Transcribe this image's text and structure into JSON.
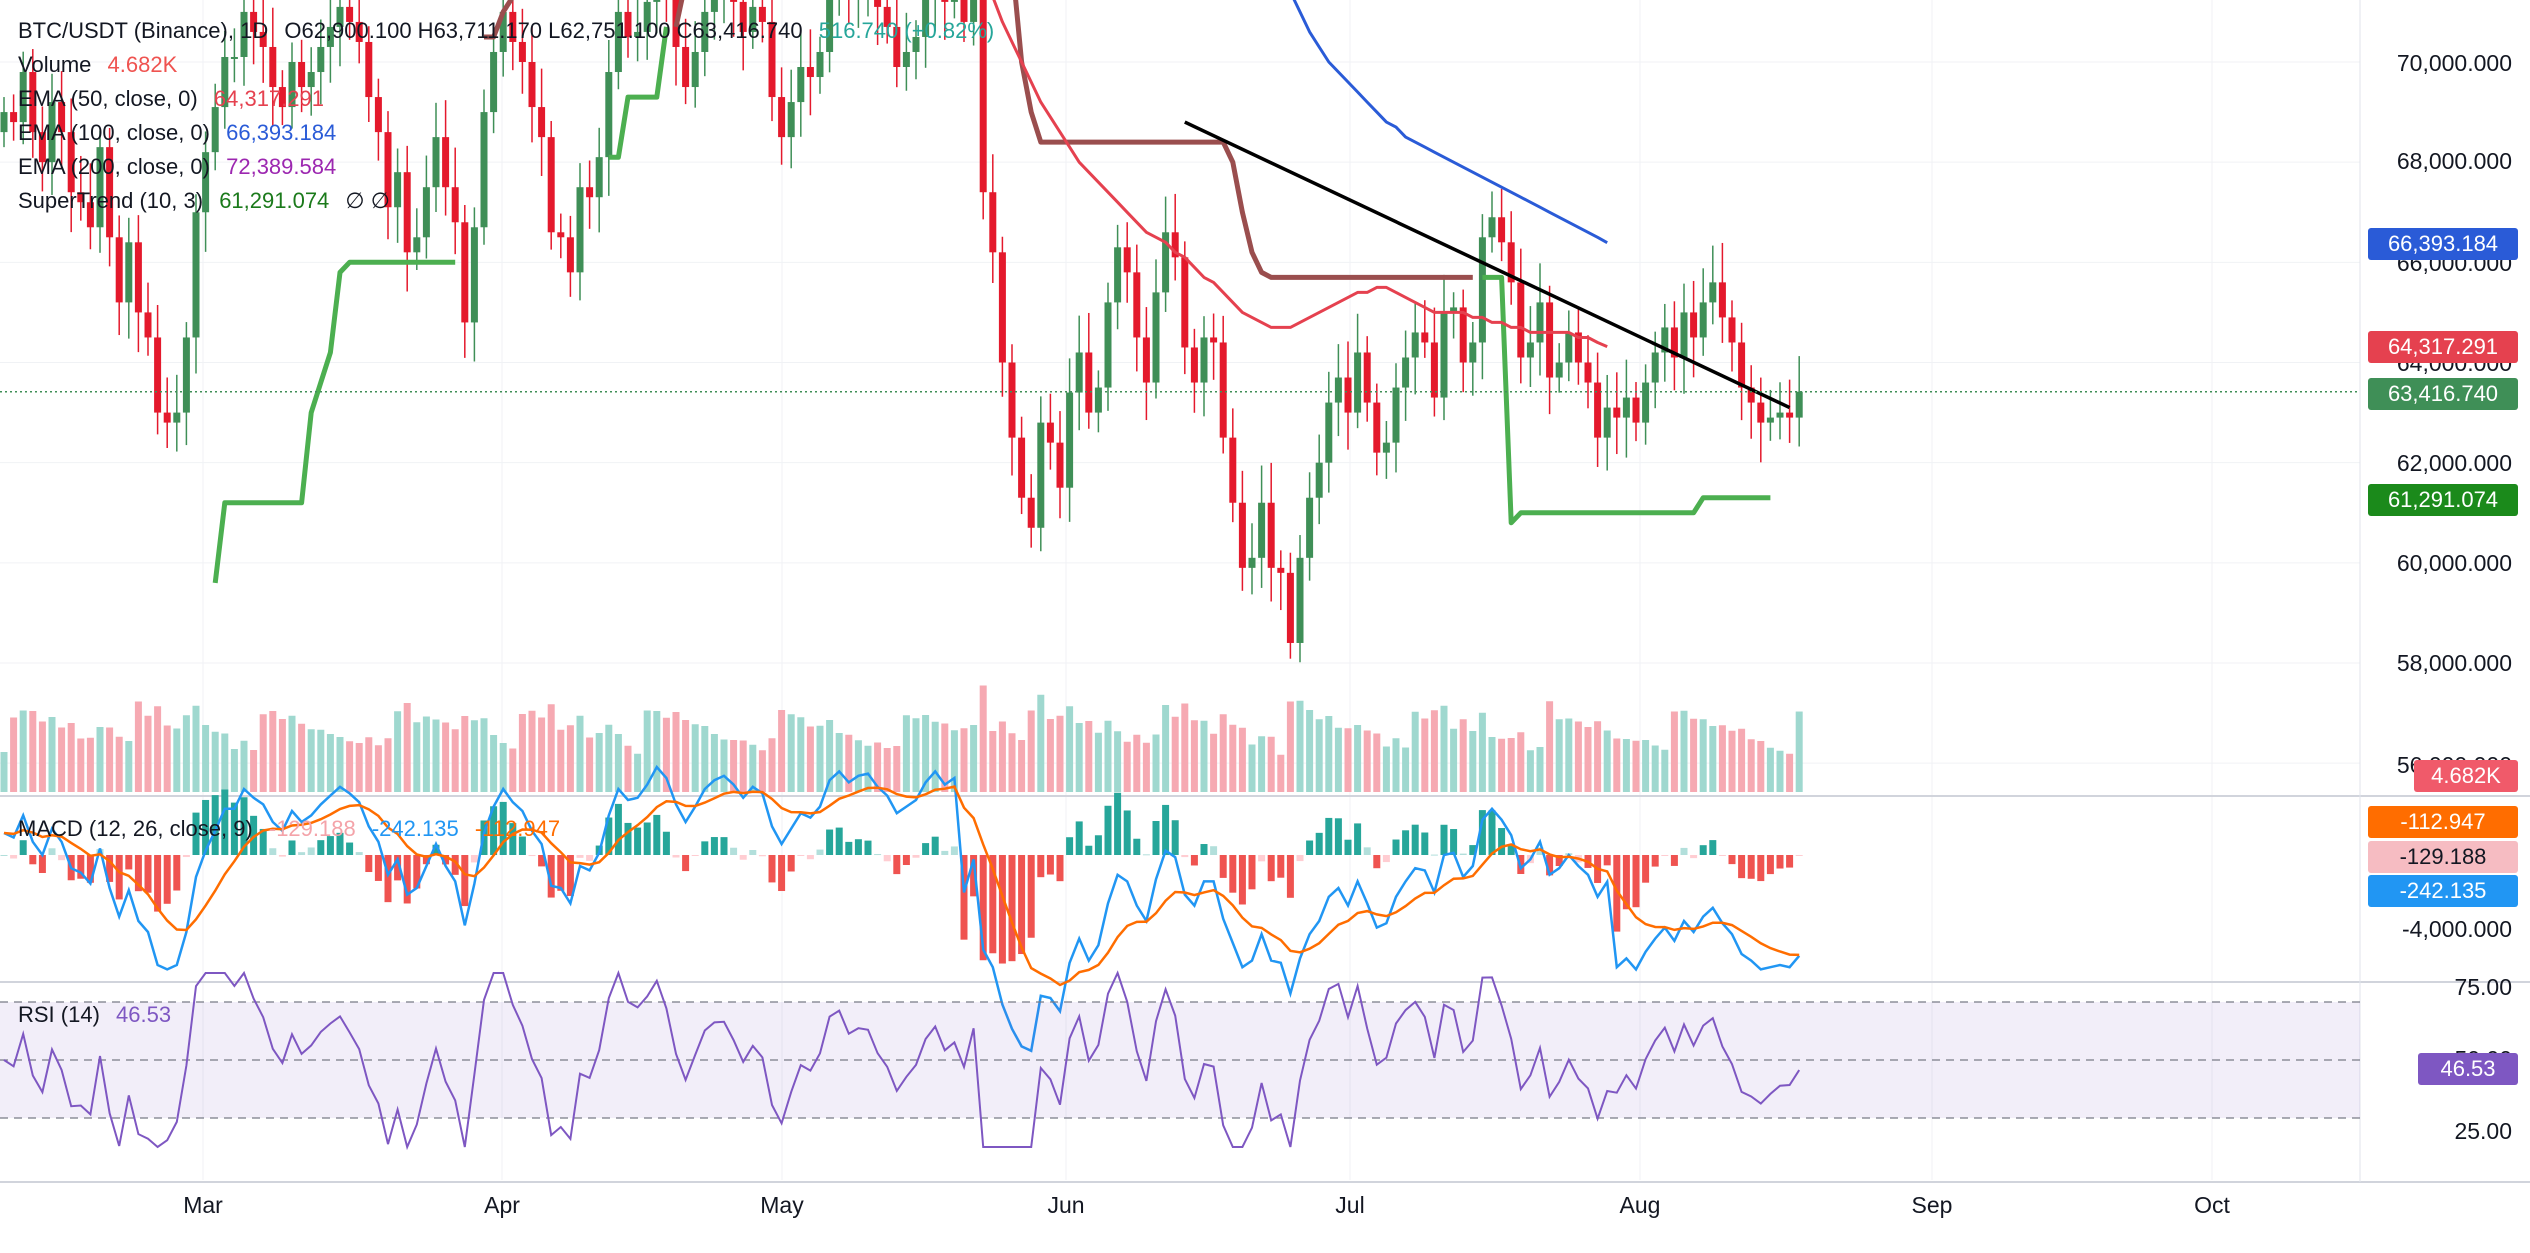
{
  "colors": {
    "up": "#26a69a",
    "candle_up": "#3f8f57",
    "candle_down": "#e4192c",
    "vol_up": "#9fd8cf",
    "vol_down": "#f6a9b2",
    "ema50": "#e5414f",
    "ema100": "#2a5bd7",
    "supertrend_up": "#4caf50",
    "supertrend_down": "#9a4e4e",
    "macd": "#2196f3",
    "signal": "#ff6d00",
    "rsi": "#7e57c2",
    "trendline": "#000000"
  },
  "header": {
    "symbol": "BTC/USDT (Binance), 1D",
    "ohlc": "O62,900.100  H63,711.170  L62,751.100  C63,416.740",
    "change": "516.740 (+0.82%)",
    "volume_label": "Volume",
    "volume_value": "4.682K",
    "ema50_label": "EMA (50, close, 0)",
    "ema50_value": "64,317.291",
    "ema100_label": "EMA (100, close, 0)",
    "ema100_value": "66,393.184",
    "ema200_label": "EMA (200, close, 0)",
    "ema200_value": "72,389.584",
    "supertrend_label": "SuperTrend (10, 3)",
    "supertrend_value": "61,291.074",
    "supertrend_extra": "∅  ∅"
  },
  "macd_legend": {
    "label": "MACD (12, 26, close, 9)",
    "hist_value": "-129.188",
    "macd_value": "-242.135",
    "signal_value": "-112.947"
  },
  "rsi_legend": {
    "label": "RSI (14)",
    "value": "46.53"
  },
  "price_axis": [
    "70,000.000",
    "68,000.000",
    "66,000.000",
    "64,000.000",
    "62,000.000",
    "60,000.000",
    "58,000.000",
    "56,000.000"
  ],
  "macd_axis": [
    "-4,000.000"
  ],
  "rsi_axis": [
    "75.00",
    "50.00",
    "25.00"
  ],
  "time_axis": [
    "Mar",
    "Apr",
    "May",
    "Jun",
    "Jul",
    "Aug",
    "Sep",
    "Oct"
  ],
  "badges": {
    "ema100": "66,393.184",
    "ema50": "64,317.291",
    "close": "63,416.740",
    "supertrend": "61,291.074",
    "volume": "4.682K",
    "signal": "-112.947",
    "hist": "-129.188",
    "macd": "-242.135",
    "rsi": "46.53"
  },
  "chart_data": {
    "type": "candlestick",
    "timeframe": "1D",
    "ylim": [
      56000,
      72500
    ],
    "last_close": 63416.74,
    "closes": [
      69000,
      68800,
      69800,
      68600,
      68000,
      69200,
      68600,
      67400,
      67200,
      66700,
      68300,
      66500,
      65200,
      66400,
      65000,
      64500,
      63000,
      62800,
      63000,
      64500,
      67000,
      68200,
      69100,
      70100,
      70100,
      71000,
      70600,
      70300,
      69500,
      69100,
      70000,
      69500,
      69800,
      70300,
      70700,
      71100,
      70800,
      70400,
      69300,
      68600,
      67100,
      67800,
      66200,
      66500,
      67500,
      68500,
      67500,
      66800,
      64800,
      66700,
      69000,
      70200,
      71000,
      70400,
      70000,
      69100,
      68500,
      66600,
      66500,
      65800,
      67500,
      67300,
      68100,
      69800,
      71000,
      70500,
      70600,
      71200,
      72000,
      71500,
      70300,
      69500,
      70200,
      71000,
      71400,
      71600,
      71200,
      70600,
      71100,
      70800,
      69300,
      68500,
      69200,
      69900,
      69700,
      70200,
      71400,
      71800,
      71300,
      71600,
      71700,
      71100,
      70700,
      69900,
      70200,
      70500,
      71300,
      71800,
      71200,
      71500,
      70800,
      72000,
      67400,
      66200,
      64000,
      62500,
      61300,
      60700,
      62800,
      62400,
      61500,
      63400,
      64200,
      63000,
      63500,
      65200,
      66300,
      65800,
      64500,
      63600,
      65400,
      66600,
      66100,
      64300,
      63600,
      64500,
      64400,
      62500,
      61200,
      59900,
      60100,
      61200,
      59900,
      59800,
      58400,
      60100,
      61300,
      62000,
      63200,
      63700,
      63000,
      64200,
      63200,
      62200,
      62400,
      63500,
      64100,
      64600,
      64400,
      63300,
      65000,
      65100,
      64000,
      64400,
      66500,
      66900,
      66400,
      65600,
      64100,
      64400,
      65200,
      63700,
      64000,
      64600,
      64000,
      63600,
      62500,
      63100,
      62900,
      63300,
      62800,
      63600,
      64200,
      64700,
      64100,
      65000,
      64500,
      65200,
      65600,
      64900,
      64400,
      63500,
      63200,
      62800,
      62900,
      63000,
      62900,
      63417
    ],
    "ema50": [
      null,
      null,
      null,
      null,
      null,
      null,
      null,
      null,
      null,
      null,
      null,
      null,
      null,
      null,
      null,
      null,
      null,
      null,
      null,
      null,
      null,
      null,
      null,
      null,
      null,
      null,
      null,
      null,
      null,
      null,
      null,
      null,
      null,
      null,
      null,
      null,
      null,
      null,
      null,
      null,
      null,
      null,
      null,
      null,
      null,
      null,
      null,
      null,
      null,
      null,
      null,
      null,
      null,
      null,
      null,
      null,
      null,
      null,
      null,
      null,
      null,
      null,
      null,
      null,
      null,
      null,
      null,
      null,
      null,
      null,
      null,
      null,
      null,
      null,
      null,
      null,
      null,
      null,
      null,
      null,
      null,
      null,
      null,
      null,
      null,
      null,
      null,
      null,
      null,
      null,
      null,
      null,
      null,
      null,
      null,
      null,
      null,
      null,
      null,
      null,
      72500,
      72200,
      71700,
      71300,
      70800,
      70400,
      70000,
      69600,
      69200,
      68900,
      68600,
      68300,
      68000,
      67800,
      67600,
      67400,
      67200,
      67000,
      66800,
      66600,
      66500,
      66400,
      66200,
      66100,
      65900,
      65700,
      65600,
      65400,
      65200,
      65000,
      64900,
      64800,
      64700,
      64700,
      64700,
      64800,
      64900,
      65000,
      65100,
      65200,
      65300,
      65400,
      65400,
      65500,
      65500,
      65400,
      65300,
      65200,
      65100,
      65000,
      65000,
      65000,
      65000,
      64900,
      64900,
      64800,
      64800,
      64700,
      64700,
      64600,
      64600,
      64600,
      64600,
      64600,
      64500,
      64500,
      64400,
      64317
    ],
    "ema100": [
      null,
      null,
      null,
      null,
      null,
      null,
      null,
      null,
      null,
      null,
      null,
      null,
      null,
      null,
      null,
      null,
      null,
      null,
      null,
      null,
      null,
      null,
      null,
      null,
      null,
      null,
      null,
      null,
      null,
      null,
      null,
      null,
      null,
      null,
      null,
      null,
      null,
      null,
      null,
      null,
      null,
      null,
      null,
      null,
      null,
      null,
      null,
      null,
      null,
      null,
      null,
      null,
      null,
      null,
      null,
      null,
      null,
      null,
      null,
      null,
      null,
      null,
      null,
      null,
      null,
      null,
      null,
      null,
      null,
      null,
      null,
      null,
      null,
      null,
      null,
      null,
      null,
      null,
      null,
      null,
      null,
      null,
      null,
      null,
      null,
      null,
      null,
      null,
      null,
      null,
      null,
      null,
      null,
      null,
      null,
      null,
      null,
      null,
      null,
      null,
      null,
      null,
      null,
      null,
      null,
      null,
      null,
      null,
      null,
      null,
      null,
      null,
      null,
      null,
      null,
      null,
      null,
      null,
      null,
      null,
      null,
      null,
      null,
      null,
      null,
      null,
      null,
      null,
      null,
      null,
      null,
      72600,
      72200,
      71800,
      71400,
      71000,
      70600,
      70300,
      70000,
      69800,
      69600,
      69400,
      69200,
      69000,
      68800,
      68700,
      68500,
      68400,
      68300,
      68200,
      68100,
      68000,
      67900,
      67800,
      67700,
      67600,
      67500,
      67400,
      67300,
      67200,
      67100,
      67000,
      66900,
      66800,
      66700,
      66600,
      66500,
      66393
    ],
    "supertrend": [
      null,
      null,
      null,
      null,
      null,
      null,
      null,
      null,
      null,
      null,
      null,
      null,
      null,
      null,
      null,
      null,
      null,
      null,
      null,
      null,
      null,
      null,
      59600,
      61200,
      61200,
      61200,
      61200,
      61200,
      61200,
      61200,
      61200,
      61200,
      63000,
      63600,
      64200,
      65800,
      66000,
      66000,
      66000,
      66000,
      66000,
      66000,
      66000,
      66000,
      66000,
      66000,
      66000,
      66000,
      66000,
      66000,
      70500,
      70500,
      71000,
      71300,
      71500,
      72000,
      72500,
      null,
      null,
      null,
      null,
      66100,
      68100,
      68100,
      68100,
      69300,
      69300,
      69300,
      69300,
      70700,
      70700,
      71600,
      72500,
      null,
      null,
      null,
      null,
      null,
      null,
      null,
      null,
      null,
      null,
      null,
      null,
      null,
      null,
      null,
      null,
      null,
      null,
      null,
      null,
      null,
      null,
      null,
      null,
      null,
      null,
      null,
      null,
      null,
      null,
      null,
      null,
      72000,
      70000,
      69000,
      68400,
      68400,
      68400,
      68400,
      68400,
      68400,
      68400,
      68400,
      68400,
      68400,
      68400,
      68400,
      68400,
      68400,
      68400,
      68400,
      68400,
      68400,
      68400,
      68400,
      68000,
      67000,
      66200,
      65800,
      65700,
      65700,
      65700,
      65700,
      65700,
      65700,
      65700,
      65700,
      65700,
      65700,
      65700,
      65700,
      65700,
      65700,
      65700,
      65700,
      65700,
      65700,
      65700,
      65700,
      65700,
      65700,
      65700,
      65700,
      65700,
      60800,
      61000,
      61000,
      61000,
      61000,
      61000,
      61000,
      61000,
      61000,
      61000,
      61000,
      61000,
      61000,
      61000,
      61000,
      61000,
      61000,
      61000,
      61000,
      61000,
      61300,
      61300,
      61300,
      61300,
      61300,
      61300,
      61300,
      61300
    ],
    "trendline": [
      [
        123,
        68800
      ],
      [
        186,
        63100
      ]
    ],
    "rsi_last": 46.53,
    "rsi_levels": [
      70,
      50,
      30
    ],
    "macd_last": -242.135,
    "signal_last": -112.947,
    "hist_last": -129.188
  }
}
